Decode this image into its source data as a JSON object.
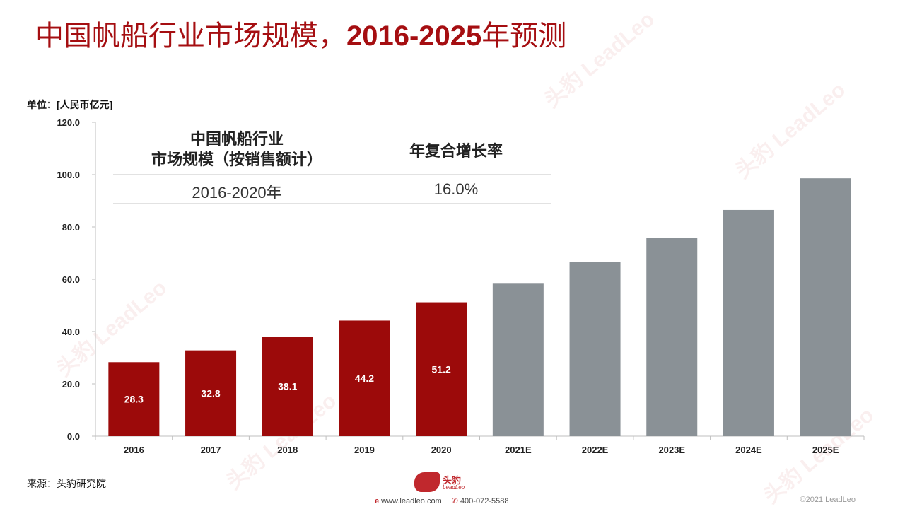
{
  "title": {
    "part1": "中国帆船行业市场规模，",
    "part2": "2016-2025",
    "part3": "年预测"
  },
  "unit_label": "单位：[人民币亿元]",
  "cagr_table": {
    "header_col1_line1": "中国帆船行业",
    "header_col1_line2": "市场规模（按销售额计）",
    "header_col2": "年复合增长率",
    "row_period": "2016-2020年",
    "row_rate": "16.0%"
  },
  "chart_data": {
    "type": "bar",
    "categories": [
      "2016",
      "2017",
      "2018",
      "2019",
      "2020",
      "2021E",
      "2022E",
      "2023E",
      "2024E",
      "2025E"
    ],
    "values": [
      28.3,
      32.8,
      38.1,
      44.2,
      51.2,
      58.3,
      66.5,
      75.8,
      86.5,
      98.6
    ],
    "data_labels": [
      "28.3",
      "32.8",
      "38.1",
      "44.2",
      "51.2",
      "",
      "",
      "",
      "",
      ""
    ],
    "ylim": [
      0,
      120
    ],
    "yticks": [
      "0.0",
      "20.0",
      "40.0",
      "60.0",
      "80.0",
      "100.0",
      "120.0"
    ],
    "colors": {
      "historical": "#9c0a0a",
      "forecast": "#8a9196",
      "axis": "#bfbfbf"
    },
    "grid": false,
    "legend": "none"
  },
  "source": "来源：头豹研究院",
  "footer": {
    "logo_name": "头豹",
    "logo_sub": "LeadLeo",
    "website": "www.leadleo.com",
    "phone": "400-072-5588",
    "copyright": "©2021 LeadLeo"
  },
  "watermark_text": "头豹 LeadLeo"
}
